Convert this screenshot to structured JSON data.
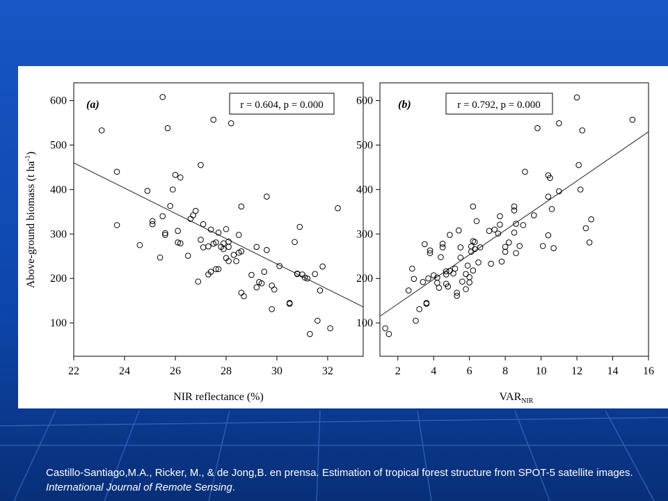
{
  "colors": {
    "slide_background": "#0b3a8a",
    "slide_background_top": "#1756c4",
    "slide_stripe": "#4a7ad8",
    "panel": "#ffffff",
    "ink": "#000000",
    "citation_text": "#ffffff"
  },
  "citation": {
    "main": "Castillo-Santiago,M.A., Ricker, M., & de Jong,B. en prensa. Estimation of tropical forest structure from SPOT-5 satellite images.",
    "journal": "International Journal of Remote Sensing",
    "end": "."
  },
  "chart_data": [
    {
      "type": "scatter",
      "panel_label": "(a)",
      "stats": "r = 0.604, p = 0.000",
      "xlabel": "NIR reflectance (%)",
      "ylabel": "Above-ground biomass (t ha",
      "ylabel_sup": "-1",
      "ylabel_end": ")",
      "xlim": [
        22,
        33.4
      ],
      "ylim": [
        25,
        640
      ],
      "xticks": [
        22,
        24,
        26,
        28,
        30,
        32
      ],
      "yticks": [
        100,
        200,
        300,
        400,
        500,
        600
      ],
      "grid": false,
      "trendline": {
        "x": [
          22,
          33.4
        ],
        "y": [
          460,
          136
        ]
      },
      "points": [
        [
          23.1,
          533
        ],
        [
          23.7,
          440
        ],
        [
          23.7,
          320
        ],
        [
          24.6,
          275
        ],
        [
          24.9,
          397
        ],
        [
          25.1,
          329
        ],
        [
          25.1,
          322
        ],
        [
          25.4,
          247
        ],
        [
          25.5,
          608
        ],
        [
          25.5,
          340
        ],
        [
          25.6,
          302
        ],
        [
          25.6,
          298
        ],
        [
          25.7,
          538
        ],
        [
          25.8,
          363
        ],
        [
          25.9,
          400
        ],
        [
          26.0,
          433
        ],
        [
          26.1,
          307
        ],
        [
          26.1,
          281
        ],
        [
          26.2,
          279
        ],
        [
          26.2,
          427
        ],
        [
          26.5,
          251
        ],
        [
          26.6,
          334
        ],
        [
          26.7,
          342
        ],
        [
          26.8,
          352
        ],
        [
          26.9,
          193
        ],
        [
          27.0,
          287
        ],
        [
          27.0,
          455
        ],
        [
          27.1,
          270
        ],
        [
          27.1,
          322
        ],
        [
          27.3,
          272
        ],
        [
          27.3,
          209
        ],
        [
          27.4,
          310
        ],
        [
          27.4,
          215
        ],
        [
          27.5,
          557
        ],
        [
          27.5,
          278
        ],
        [
          27.6,
          221
        ],
        [
          27.6,
          281
        ],
        [
          27.7,
          303
        ],
        [
          27.7,
          221
        ],
        [
          27.8,
          271
        ],
        [
          27.9,
          266
        ],
        [
          27.9,
          279
        ],
        [
          28.0,
          246
        ],
        [
          28.0,
          311
        ],
        [
          28.1,
          239
        ],
        [
          28.1,
          283
        ],
        [
          28.1,
          271
        ],
        [
          28.2,
          549
        ],
        [
          28.3,
          253
        ],
        [
          28.4,
          239
        ],
        [
          28.5,
          298
        ],
        [
          28.5,
          258
        ],
        [
          28.6,
          362
        ],
        [
          28.6,
          168
        ],
        [
          28.6,
          261
        ],
        [
          28.7,
          160
        ],
        [
          29.0,
          208
        ],
        [
          29.2,
          271
        ],
        [
          29.2,
          180
        ],
        [
          29.3,
          192
        ],
        [
          29.4,
          189
        ],
        [
          29.5,
          215
        ],
        [
          29.6,
          384
        ],
        [
          29.6,
          264
        ],
        [
          29.8,
          131
        ],
        [
          29.8,
          184
        ],
        [
          29.9,
          175
        ],
        [
          30.1,
          228
        ],
        [
          30.5,
          143
        ],
        [
          30.5,
          145
        ],
        [
          30.7,
          282
        ],
        [
          30.8,
          211
        ],
        [
          30.8,
          210
        ],
        [
          30.9,
          316
        ],
        [
          31.0,
          209
        ],
        [
          31.1,
          202
        ],
        [
          31.2,
          200
        ],
        [
          31.3,
          75
        ],
        [
          31.5,
          210
        ],
        [
          31.6,
          105
        ],
        [
          31.7,
          173
        ],
        [
          31.8,
          227
        ],
        [
          32.1,
          88
        ],
        [
          32.4,
          358
        ]
      ]
    },
    {
      "type": "scatter",
      "panel_label": "(b)",
      "stats": "r = 0.792, p = 0.000",
      "xlabel": "VAR",
      "xlabel_sub": "NIR",
      "xlim": [
        1,
        16
      ],
      "ylim": [
        25,
        640
      ],
      "xticks": [
        2,
        4,
        6,
        8,
        10,
        12,
        14,
        16
      ],
      "yticks": [
        100,
        200,
        300,
        400,
        500,
        600
      ],
      "grid": false,
      "trendline": {
        "x": [
          1,
          16
        ],
        "y": [
          115,
          530
        ]
      },
      "points": [
        [
          1.3,
          88
        ],
        [
          1.5,
          75
        ],
        [
          2.6,
          173
        ],
        [
          2.8,
          222
        ],
        [
          2.9,
          199
        ],
        [
          3.0,
          105
        ],
        [
          3.2,
          131
        ],
        [
          3.4,
          192
        ],
        [
          3.5,
          277
        ],
        [
          3.6,
          143
        ],
        [
          3.6,
          145
        ],
        [
          3.7,
          200
        ],
        [
          3.8,
          257
        ],
        [
          3.8,
          263
        ],
        [
          4.0,
          207
        ],
        [
          4.2,
          190
        ],
        [
          4.2,
          202
        ],
        [
          4.3,
          179
        ],
        [
          4.4,
          248
        ],
        [
          4.5,
          270
        ],
        [
          4.5,
          278
        ],
        [
          4.7,
          216
        ],
        [
          4.7,
          209
        ],
        [
          4.7,
          188
        ],
        [
          4.8,
          182
        ],
        [
          4.9,
          217
        ],
        [
          4.9,
          298
        ],
        [
          5.1,
          211
        ],
        [
          5.2,
          222
        ],
        [
          5.3,
          161
        ],
        [
          5.3,
          168
        ],
        [
          5.4,
          308
        ],
        [
          5.5,
          270
        ],
        [
          5.5,
          247
        ],
        [
          5.6,
          193
        ],
        [
          5.8,
          210
        ],
        [
          5.8,
          176
        ],
        [
          5.9,
          229
        ],
        [
          6.0,
          203
        ],
        [
          6.0,
          191
        ],
        [
          6.1,
          272
        ],
        [
          6.1,
          260
        ],
        [
          6.2,
          362
        ],
        [
          6.2,
          284
        ],
        [
          6.2,
          218
        ],
        [
          6.3,
          282
        ],
        [
          6.3,
          266
        ],
        [
          6.4,
          329
        ],
        [
          6.5,
          236
        ],
        [
          6.6,
          270
        ],
        [
          7.1,
          307
        ],
        [
          7.2,
          233
        ],
        [
          7.4,
          310
        ],
        [
          7.6,
          301
        ],
        [
          7.7,
          340
        ],
        [
          7.7,
          321
        ],
        [
          7.8,
          238
        ],
        [
          8.0,
          271
        ],
        [
          8.0,
          260
        ],
        [
          8.2,
          281
        ],
        [
          8.5,
          362
        ],
        [
          8.5,
          353
        ],
        [
          8.5,
          303
        ],
        [
          8.6,
          257
        ],
        [
          8.6,
          323
        ],
        [
          8.8,
          273
        ],
        [
          9.0,
          320
        ],
        [
          9.1,
          440
        ],
        [
          9.6,
          342
        ],
        [
          9.8,
          538
        ],
        [
          10.1,
          273
        ],
        [
          10.4,
          432
        ],
        [
          10.4,
          297
        ],
        [
          10.4,
          384
        ],
        [
          10.5,
          426
        ],
        [
          10.6,
          356
        ],
        [
          10.7,
          268
        ],
        [
          11.0,
          549
        ],
        [
          11.0,
          396
        ],
        [
          12.0,
          607
        ],
        [
          12.1,
          455
        ],
        [
          12.2,
          400
        ],
        [
          12.3,
          533
        ],
        [
          12.5,
          313
        ],
        [
          12.7,
          281
        ],
        [
          12.8,
          333
        ],
        [
          15.1,
          557
        ]
      ]
    }
  ]
}
